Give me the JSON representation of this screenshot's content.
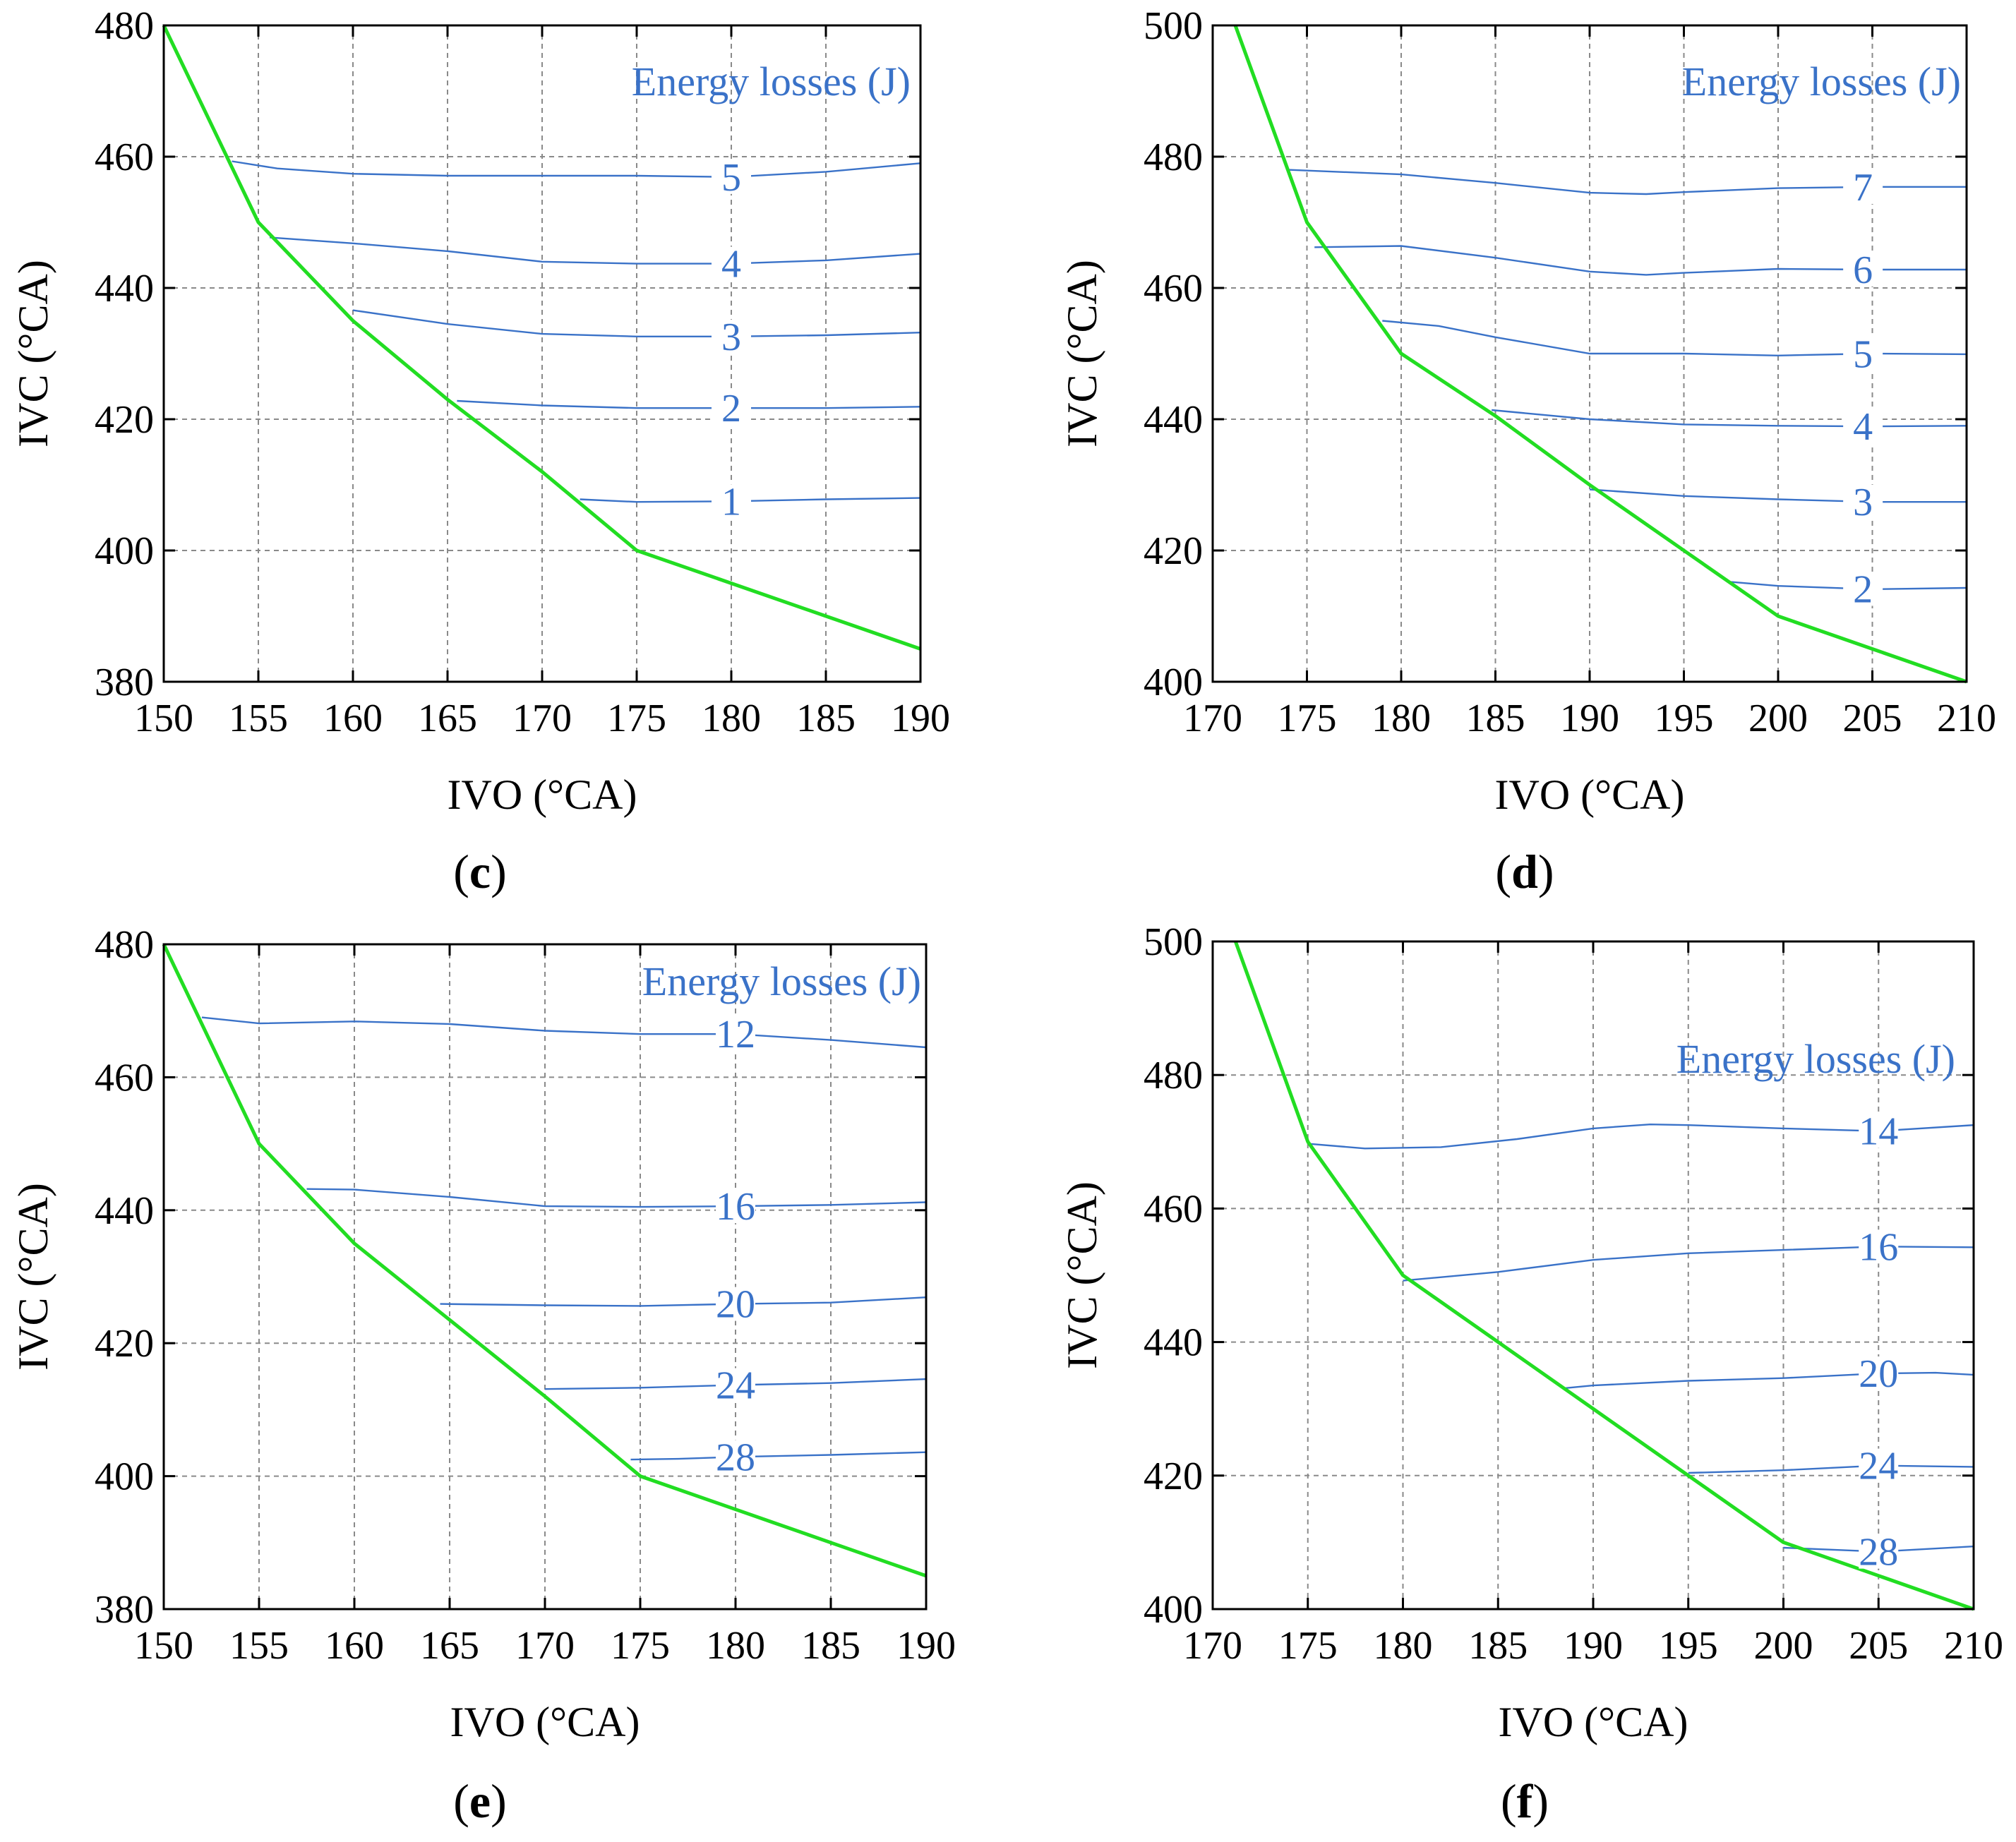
{
  "colors": {
    "boundary": "#22dd22",
    "contour": "#3a72c8",
    "grid": "#8a8a8a",
    "frame": "#000000"
  },
  "chart_data": [
    {
      "id": "c",
      "type": "line",
      "panel_label": "c",
      "xlabel": "IVO (°CA)",
      "ylabel": "IVC (°CA)",
      "legend_title": "Energy losses (J)",
      "xlim": [
        150,
        190
      ],
      "ylim": [
        380,
        480
      ],
      "x_ticks": [
        150,
        155,
        160,
        165,
        170,
        175,
        180,
        185,
        190
      ],
      "y_ticks": [
        380,
        400,
        420,
        440,
        460,
        480
      ],
      "grid": true,
      "boundary": {
        "x": [
          150,
          155,
          160,
          165,
          170,
          175,
          180,
          185,
          190
        ],
        "y": [
          480,
          450,
          435,
          423,
          412,
          400,
          395,
          390,
          385
        ]
      },
      "series": [
        {
          "name": "5",
          "label_x": 180,
          "x": [
            153.6,
            156,
            160,
            165,
            170,
            175,
            180,
            185,
            190
          ],
          "y": [
            459.3,
            458.2,
            457.4,
            457.1,
            457.1,
            457.1,
            456.9,
            457.7,
            459.0
          ]
        },
        {
          "name": "4",
          "label_x": 180,
          "x": [
            155.6,
            160,
            165,
            170,
            175,
            180,
            185,
            190
          ],
          "y": [
            447.7,
            446.8,
            445.6,
            444.0,
            443.7,
            443.7,
            444.2,
            445.2
          ]
        },
        {
          "name": "3",
          "label_x": 180,
          "x": [
            160,
            165,
            170,
            175,
            180,
            185,
            190
          ],
          "y": [
            436.6,
            434.5,
            433.0,
            432.6,
            432.6,
            432.8,
            433.2
          ]
        },
        {
          "name": "2",
          "label_x": 180,
          "x": [
            165.5,
            170,
            175,
            180,
            185,
            190
          ],
          "y": [
            422.8,
            422.1,
            421.7,
            421.7,
            421.7,
            421.9
          ]
        },
        {
          "name": "1",
          "label_x": 180,
          "x": [
            172,
            175,
            180,
            185,
            190
          ],
          "y": [
            407.8,
            407.4,
            407.5,
            407.8,
            408.0
          ]
        }
      ]
    },
    {
      "id": "d",
      "type": "line",
      "panel_label": "d",
      "xlabel": "IVO (°CA)",
      "ylabel": "IVC (°CA)",
      "legend_title": "Energy losses (J)",
      "xlim": [
        170,
        210
      ],
      "ylim": [
        400,
        500
      ],
      "x_ticks": [
        170,
        175,
        180,
        185,
        190,
        195,
        200,
        205,
        210
      ],
      "y_ticks": [
        400,
        420,
        440,
        460,
        480,
        500
      ],
      "grid": true,
      "boundary": {
        "x": [
          171.2,
          175,
          180,
          185,
          190,
          195,
          200,
          205,
          210
        ],
        "y": [
          500,
          470,
          450,
          440.5,
          430,
          420,
          410,
          405,
          400
        ]
      },
      "series": [
        {
          "name": "7",
          "label_x": 204.5,
          "x": [
            174,
            180,
            185,
            190,
            193,
            195,
            200,
            205,
            210
          ],
          "y": [
            478.0,
            477.3,
            476.0,
            474.5,
            474.3,
            474.6,
            475.2,
            475.4,
            475.4
          ]
        },
        {
          "name": "6",
          "label_x": 204.5,
          "x": [
            175.4,
            180,
            185,
            190,
            193,
            195,
            200,
            205,
            210
          ],
          "y": [
            466.2,
            466.4,
            464.6,
            462.5,
            462.0,
            462.3,
            462.9,
            462.8,
            462.8
          ]
        },
        {
          "name": "5",
          "label_x": 204.5,
          "x": [
            179,
            182,
            185,
            190,
            195,
            200,
            205,
            210
          ],
          "y": [
            455.0,
            454.2,
            452.5,
            450.0,
            450.0,
            449.7,
            450.0,
            449.9
          ]
        },
        {
          "name": "4",
          "label_x": 204.5,
          "x": [
            184.8,
            190,
            195,
            200,
            205,
            210
          ],
          "y": [
            441.4,
            440.0,
            439.2,
            439.0,
            438.9,
            439.0
          ]
        },
        {
          "name": "3",
          "label_x": 204.5,
          "x": [
            190,
            195,
            200,
            205,
            210
          ],
          "y": [
            429.3,
            428.3,
            427.8,
            427.4,
            427.4
          ]
        },
        {
          "name": "2",
          "label_x": 204.5,
          "x": [
            197.5,
            200,
            205,
            210
          ],
          "y": [
            415.2,
            414.6,
            414.1,
            414.3
          ]
        }
      ]
    },
    {
      "id": "e",
      "type": "line",
      "panel_label": "e",
      "xlabel": "IVO (°CA)",
      "ylabel": "IVC (°CA)",
      "legend_title": "Energy losses (J)",
      "xlim": [
        150,
        190
      ],
      "ylim": [
        380,
        480
      ],
      "x_ticks": [
        150,
        155,
        160,
        165,
        170,
        175,
        180,
        185,
        190
      ],
      "y_ticks": [
        380,
        400,
        420,
        440,
        460,
        480
      ],
      "grid": true,
      "boundary": {
        "x": [
          150,
          155,
          160,
          165,
          170,
          175,
          180,
          185,
          190
        ],
        "y": [
          480,
          450,
          435,
          423.5,
          412,
          400,
          395,
          390,
          385
        ]
      },
      "series": [
        {
          "name": "12",
          "label_x": 180,
          "x": [
            152,
            155,
            160,
            165,
            170,
            175,
            180,
            185,
            190
          ],
          "y": [
            469.0,
            468.1,
            468.4,
            468.0,
            467.0,
            466.5,
            466.5,
            465.6,
            464.5
          ]
        },
        {
          "name": "16",
          "label_x": 180,
          "x": [
            157.5,
            160,
            165,
            170,
            175,
            180,
            185,
            190
          ],
          "y": [
            443.2,
            443.1,
            442.0,
            440.6,
            440.5,
            440.6,
            440.8,
            441.2
          ]
        },
        {
          "name": "20",
          "label_x": 180,
          "x": [
            164.5,
            170,
            175,
            180,
            185,
            190
          ],
          "y": [
            425.9,
            425.7,
            425.6,
            425.9,
            426.1,
            426.9
          ]
        },
        {
          "name": "24",
          "label_x": 180,
          "x": [
            170,
            175,
            180,
            185,
            190
          ],
          "y": [
            413.1,
            413.3,
            413.7,
            414.0,
            414.6
          ]
        },
        {
          "name": "28",
          "label_x": 180,
          "x": [
            174.5,
            177,
            180,
            185,
            190
          ],
          "y": [
            402.5,
            402.6,
            402.9,
            403.2,
            403.6
          ]
        }
      ]
    },
    {
      "id": "f",
      "type": "line",
      "panel_label": "f",
      "xlabel": "IVO (°CA)",
      "ylabel": "IVC (°CA)",
      "legend_title": "Energy losses (J)",
      "xlim": [
        170,
        210
      ],
      "ylim": [
        400,
        500
      ],
      "x_ticks": [
        170,
        175,
        180,
        185,
        190,
        195,
        200,
        205,
        210
      ],
      "y_ticks": [
        400,
        420,
        440,
        460,
        480,
        500
      ],
      "grid": true,
      "boundary": {
        "x": [
          171.2,
          175,
          180,
          185,
          190,
          195,
          200,
          205,
          210
        ],
        "y": [
          500,
          470,
          450,
          440,
          430,
          420,
          410,
          405,
          400
        ]
      },
      "series": [
        {
          "name": "14",
          "label_x": 205,
          "x": [
            175,
            178,
            182,
            186,
            190,
            193,
            195,
            200,
            205,
            210
          ],
          "y": [
            469.7,
            469.0,
            469.2,
            470.4,
            472.0,
            472.6,
            472.5,
            472.0,
            471.6,
            472.5
          ]
        },
        {
          "name": "16",
          "label_x": 205,
          "x": [
            180,
            185,
            190,
            195,
            200,
            205,
            210
          ],
          "y": [
            449.2,
            450.5,
            452.3,
            453.3,
            453.8,
            454.3,
            454.2
          ]
        },
        {
          "name": "20",
          "label_x": 205,
          "x": [
            188.5,
            190,
            195,
            200,
            205,
            208,
            210
          ],
          "y": [
            433.1,
            433.5,
            434.2,
            434.6,
            435.3,
            435.4,
            435.1
          ]
        },
        {
          "name": "24",
          "label_x": 205,
          "x": [
            195,
            200,
            205,
            210
          ],
          "y": [
            420.4,
            420.8,
            421.5,
            421.3
          ]
        },
        {
          "name": "28",
          "label_x": 205,
          "x": [
            200,
            205,
            210
          ],
          "y": [
            409.2,
            408.6,
            409.4
          ]
        }
      ]
    }
  ]
}
